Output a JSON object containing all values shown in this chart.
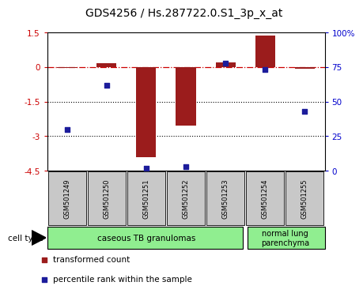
{
  "title": "GDS4256 / Hs.287722.0.S1_3p_x_at",
  "samples": [
    "GSM501249",
    "GSM501250",
    "GSM501251",
    "GSM501252",
    "GSM501253",
    "GSM501254",
    "GSM501255"
  ],
  "transformed_count": [
    -0.05,
    0.15,
    -3.9,
    -2.55,
    0.2,
    1.35,
    -0.07
  ],
  "percentile_rank": [
    30,
    62,
    2,
    3,
    78,
    73,
    43
  ],
  "ylim_left": [
    -4.5,
    1.5
  ],
  "ylim_right": [
    0,
    100
  ],
  "left_ticks": [
    1.5,
    0,
    -1.5,
    -3,
    -4.5
  ],
  "left_tick_labels": [
    "1.5",
    "0",
    "-1.5",
    "-3",
    "-4.5"
  ],
  "right_ticks": [
    100,
    75,
    50,
    25,
    0
  ],
  "right_tick_labels": [
    "100%",
    "75",
    "50",
    "25",
    "0"
  ],
  "hlines": [
    -1.5,
    -3.0
  ],
  "bar_color": "#9B1C1C",
  "dot_color": "#1C1C9B",
  "bar_width": 0.5,
  "dot_size": 25,
  "g1_count": 5,
  "g2_count": 2,
  "g1_label": "caseous TB granulomas",
  "g2_label": "normal lung\nparenchyma",
  "group_color": "#90EE90",
  "cell_type_label": "cell type",
  "legend1_color": "#9B1C1C",
  "legend1_label": "transformed count",
  "legend2_color": "#1C1C9B",
  "legend2_label": "percentile rank within the sample",
  "sample_box_color": "#C8C8C8"
}
